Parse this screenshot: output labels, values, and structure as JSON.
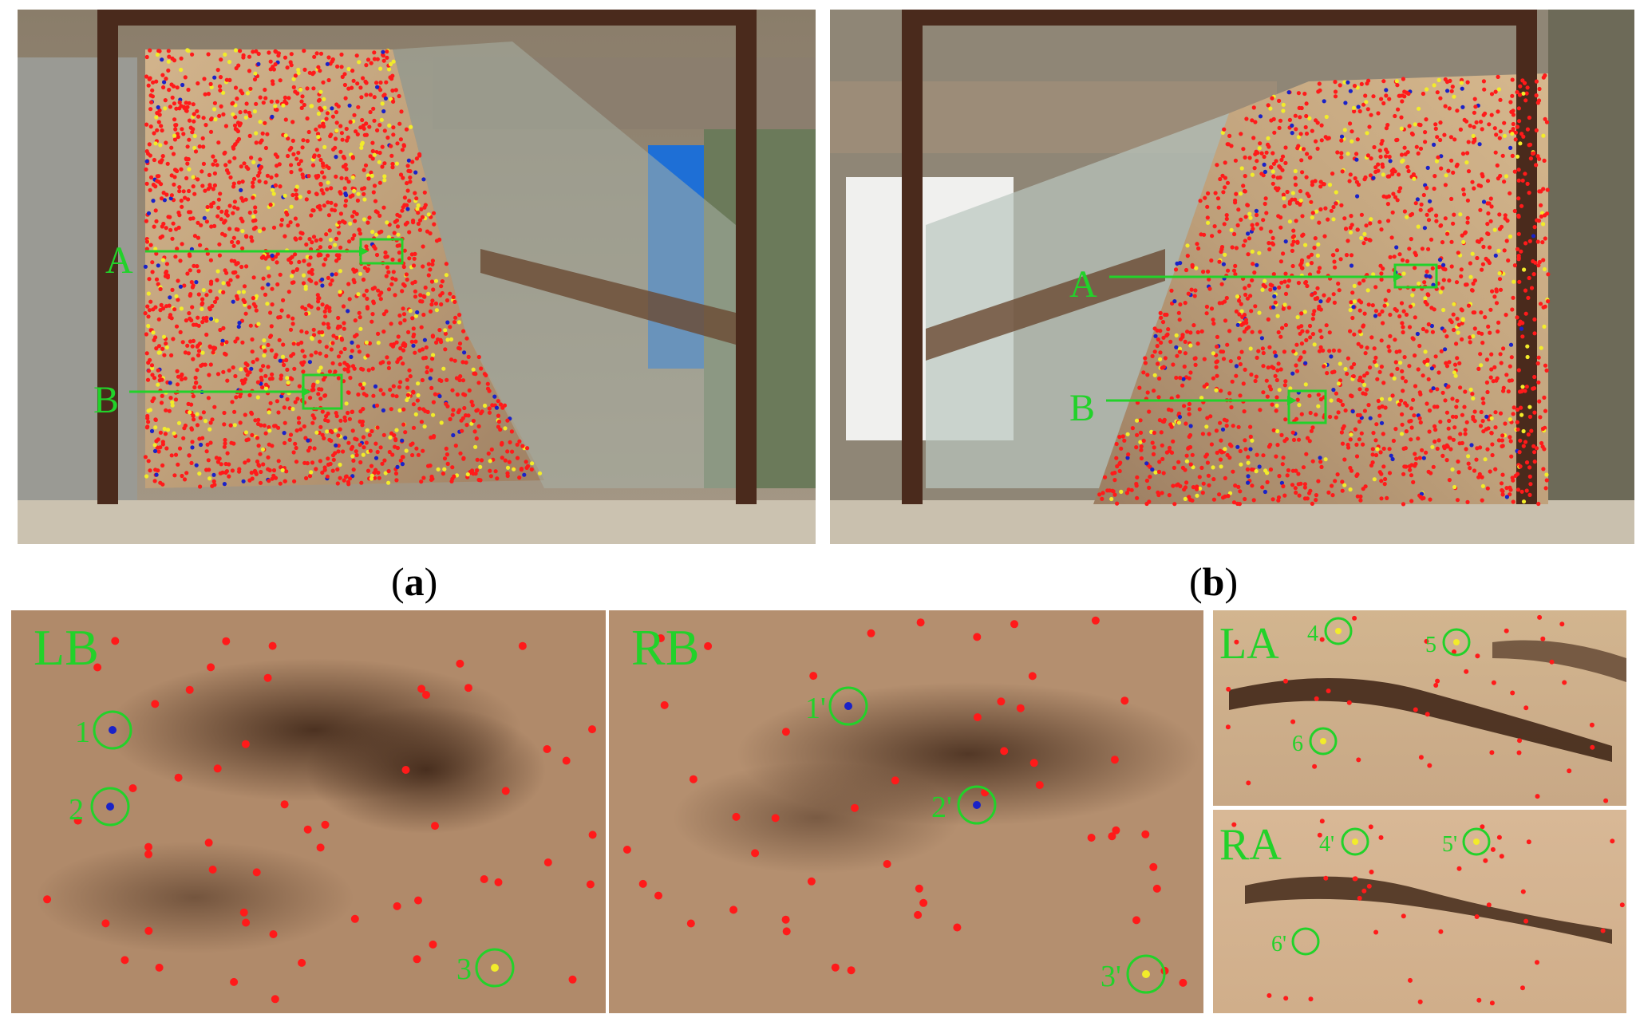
{
  "captions": {
    "a": "a",
    "b": "b"
  },
  "photo_a": {
    "label_A": "A",
    "label_B": "B"
  },
  "photo_b": {
    "label_A": "A",
    "label_B": "B"
  },
  "zoom_panels": {
    "LB": {
      "title": "LB",
      "points": [
        "1",
        "2",
        "3"
      ]
    },
    "RB": {
      "title": "RB",
      "points": [
        "1'",
        "2'",
        "3'"
      ]
    },
    "LA": {
      "title": "LA",
      "points": [
        "4",
        "5",
        "6"
      ]
    },
    "RA": {
      "title": "RA",
      "points": [
        "4'",
        "5'",
        "6'"
      ]
    }
  },
  "colors": {
    "marker_red": "#ff1a1a",
    "marker_yellow": "#f2ec2a",
    "marker_blue": "#1a22c8",
    "annotation_green": "#22d22a",
    "sand": "#c9a985",
    "frame": "#4a2a1c"
  },
  "icons": {
    "target_marker": "camera-target-icon",
    "sensor": "sensor-icon"
  }
}
